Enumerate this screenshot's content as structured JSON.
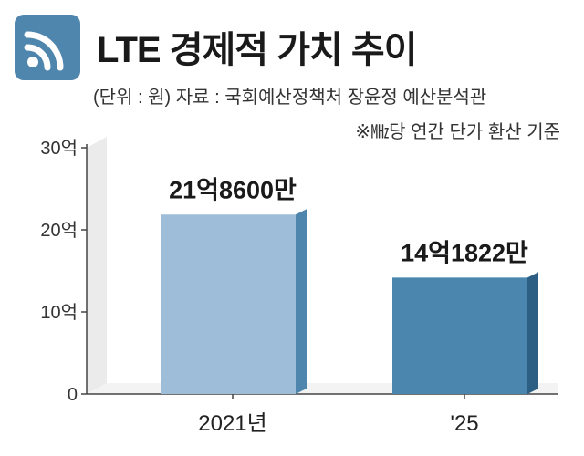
{
  "title": "LTE 경제적 가치 추이",
  "unit_source": "(단위 : 원)  자료 : 국회예산정책처 장윤정 예산분석관",
  "basis_note": "※㎒당 연간 단가 환산 기준",
  "icon": "signal-feed-icon",
  "colors": {
    "brand": "#4f86ad",
    "bar1_front": "#9dbdd9",
    "bar1_side": "#4f86ad",
    "bar2_front": "#4a86ad",
    "bar2_side": "#2d5f85",
    "wall": "#ebebeb"
  },
  "chart_data": {
    "type": "bar",
    "title": "LTE 경제적 가치 추이",
    "xlabel": "",
    "ylabel": "",
    "unit": "원",
    "categories": [
      "2021년",
      "'25"
    ],
    "values": [
      218600,
      141822
    ],
    "data_labels": [
      "21억8600만",
      "14억1822만"
    ],
    "ylim": [
      0,
      300000
    ],
    "yticks": [
      {
        "value": 0,
        "label": "0"
      },
      {
        "value": 100000,
        "label": "10억"
      },
      {
        "value": 200000,
        "label": "20억"
      },
      {
        "value": 300000,
        "label": "30억"
      }
    ],
    "grid": true
  }
}
